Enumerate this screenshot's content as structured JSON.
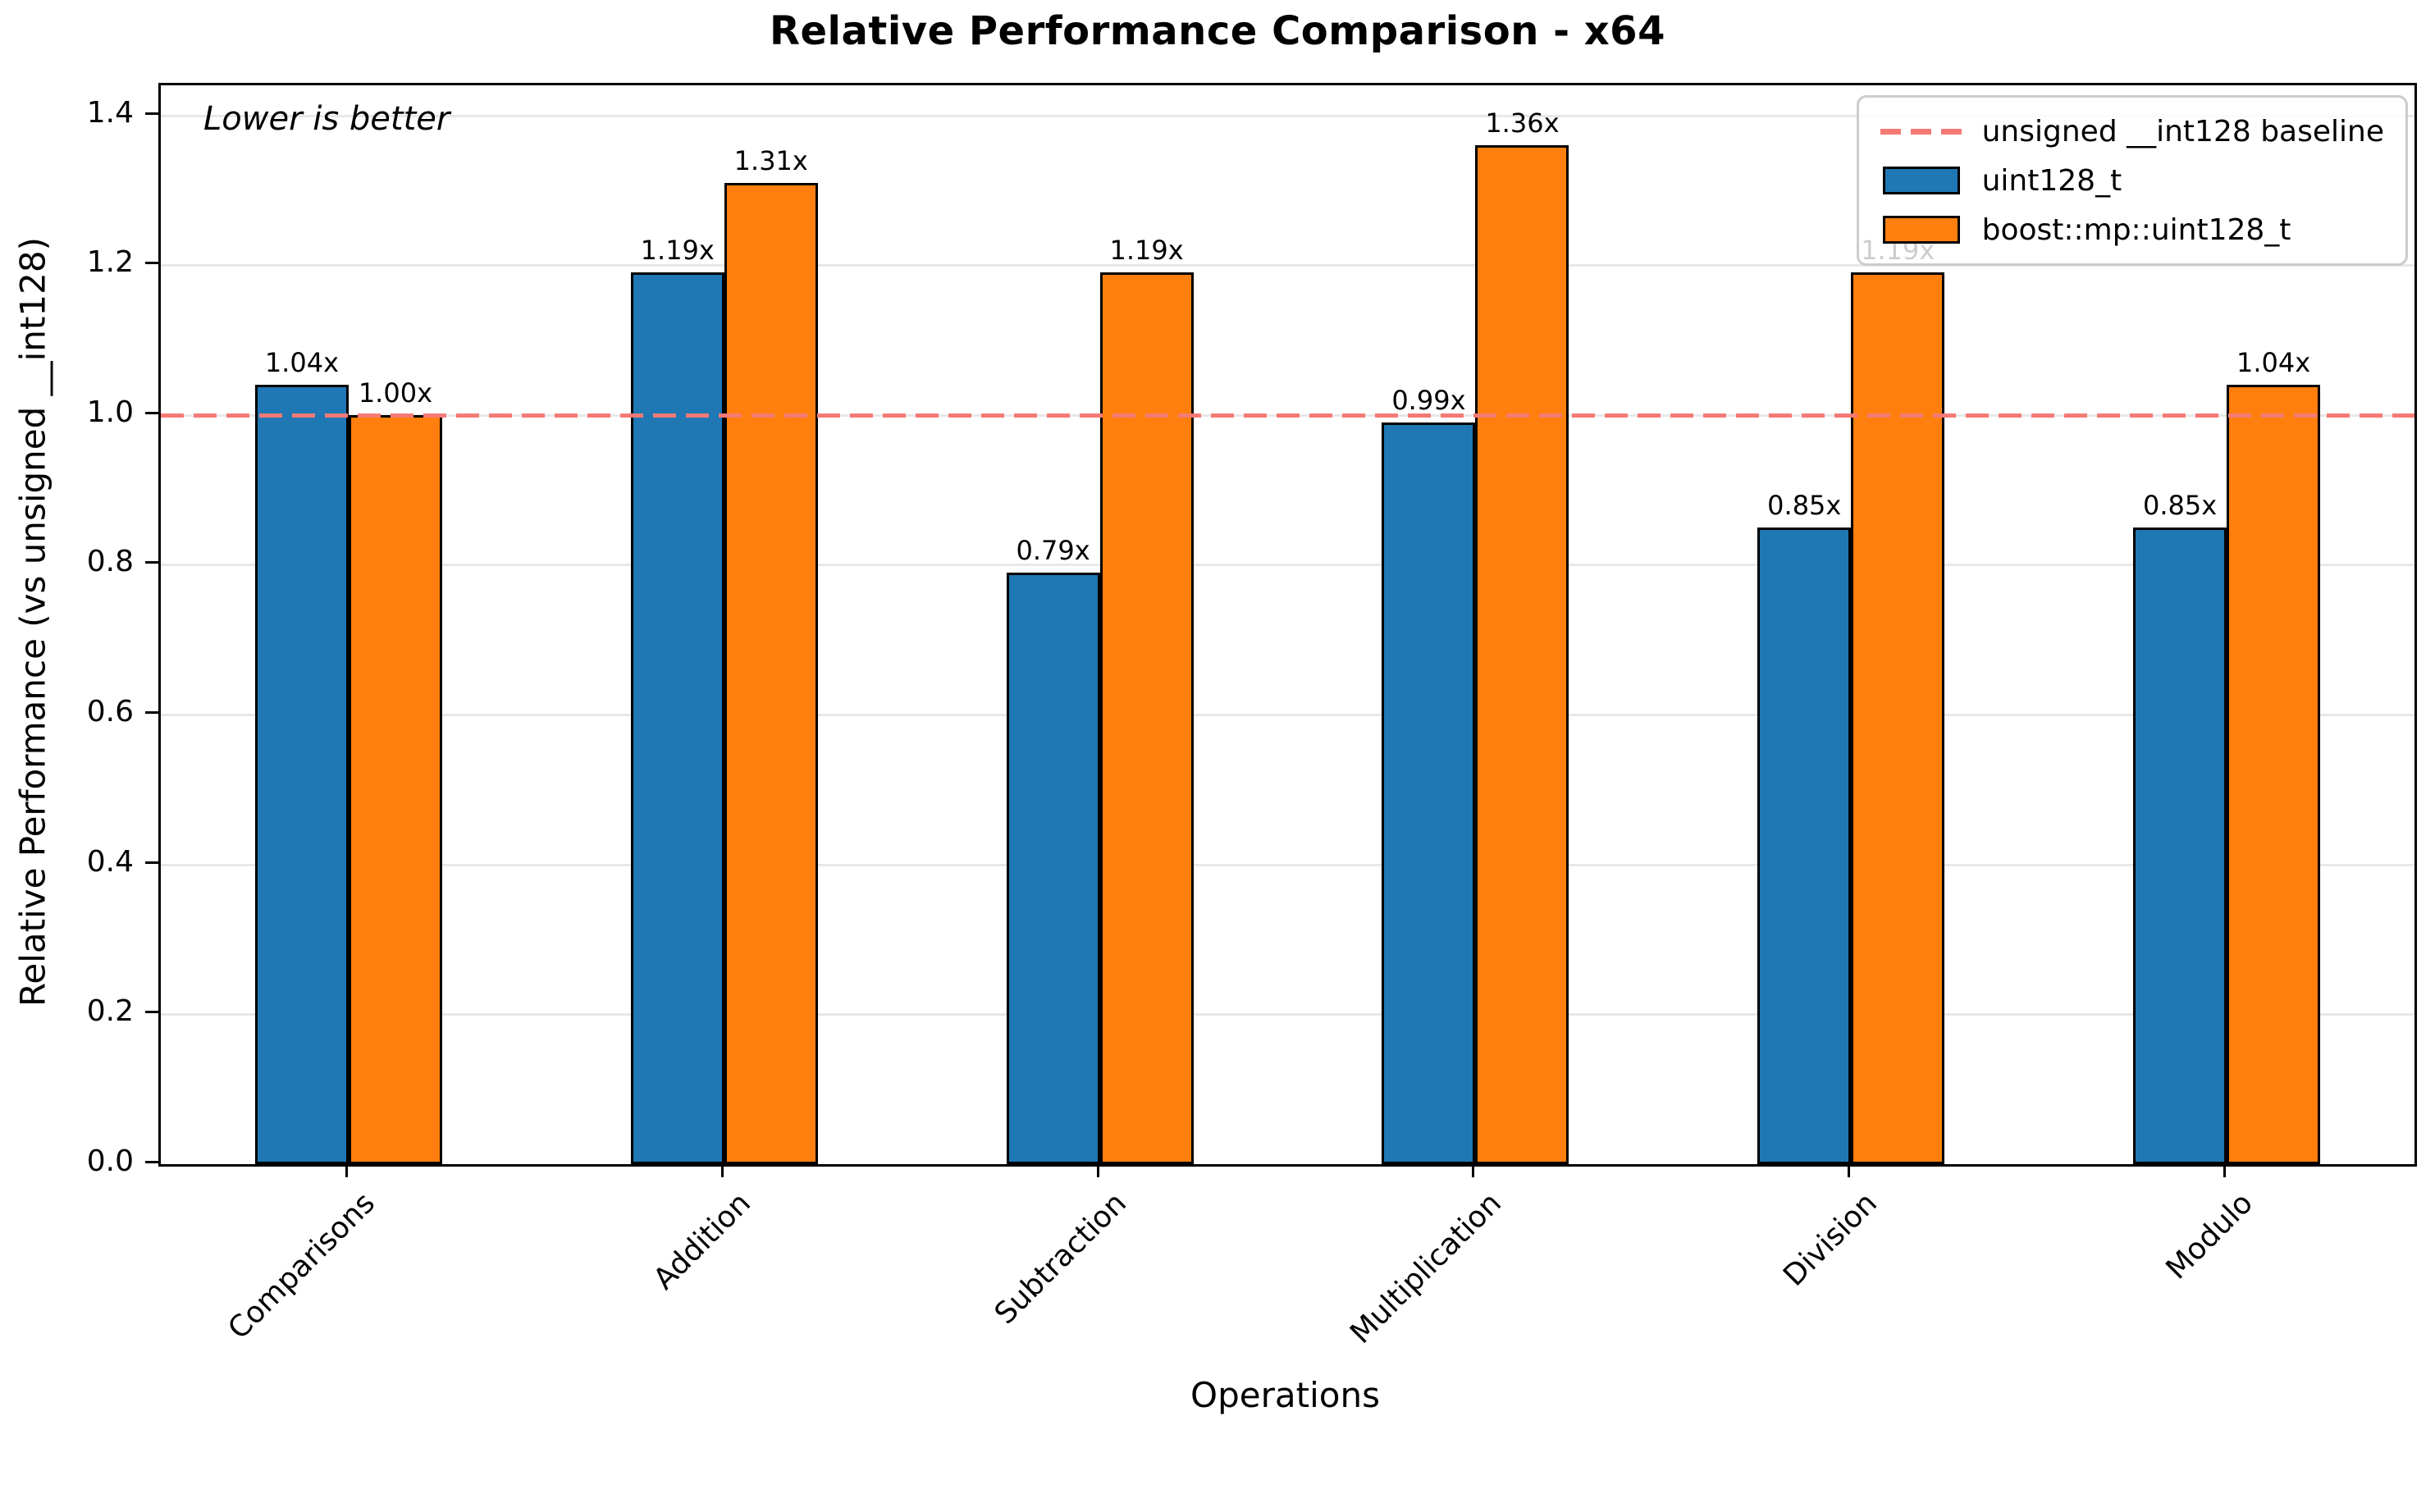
{
  "chart_data": {
    "type": "bar",
    "title": "Relative Performance Comparison - x64",
    "xlabel": "Operations",
    "ylabel": "Relative Performance (vs unsigned __int128)",
    "annotation": "Lower is better",
    "categories": [
      "Comparisons",
      "Addition",
      "Subtraction",
      "Multiplication",
      "Division",
      "Modulo"
    ],
    "series": [
      {
        "name": "uint128_t",
        "color": "#1f77b4",
        "values": [
          1.04,
          1.19,
          0.79,
          0.99,
          0.85,
          0.85
        ],
        "bar_labels": [
          "1.04x",
          "1.19x",
          "0.79x",
          "0.99x",
          "0.85x",
          "0.85x"
        ]
      },
      {
        "name": "boost::mp::uint128_t",
        "color": "#ff7f0e",
        "values": [
          1.0,
          1.31,
          1.19,
          1.36,
          1.19,
          1.04
        ],
        "bar_labels": [
          "1.00x",
          "1.31x",
          "1.19x",
          "1.36x",
          "1.19x",
          "1.04x"
        ]
      }
    ],
    "baseline": {
      "value": 1.0,
      "label": "unsigned __int128 baseline",
      "color": "#f57a75"
    },
    "ylim": [
      0,
      1.44
    ],
    "yticks": [
      0.0,
      0.2,
      0.4,
      0.6,
      0.8,
      1.0,
      1.2,
      1.4
    ],
    "ytick_labels": [
      "0.0",
      "0.2",
      "0.4",
      "0.6",
      "0.8",
      "1.0",
      "1.2",
      "1.4"
    ],
    "grid": true,
    "legend_position": "upper right",
    "colors": {
      "bar_edge": "#000000",
      "gridline": "#e8e8e8",
      "spine": "#000000"
    }
  }
}
